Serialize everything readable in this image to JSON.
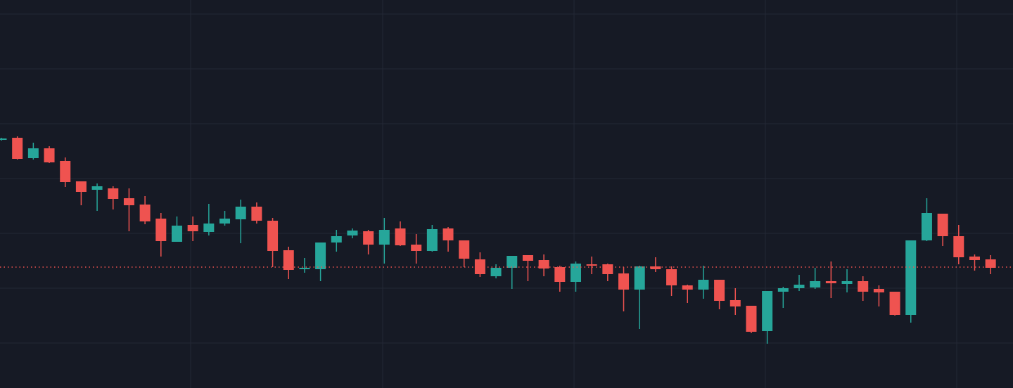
{
  "chart_data": {
    "type": "candlestick",
    "up_color": "#26a69a",
    "down_color": "#ef5350",
    "background": "#161a25",
    "grid_color": "#232835",
    "grid": true,
    "ylim": [
      0,
      552
    ],
    "yticks": [
      64,
      142,
      220,
      298,
      376,
      454,
      532
    ],
    "price_line": 172,
    "open": [
      353,
      356,
      327,
      341,
      323,
      294,
      282,
      284,
      270,
      261,
      241,
      208,
      232,
      222,
      234,
      240,
      258,
      238,
      196,
      169,
      169,
      207,
      217,
      223,
      204,
      227,
      204,
      195,
      227,
      210,
      183,
      159,
      171,
      189,
      182,
      172,
      151,
      176,
      176,
      163,
      140,
      173,
      169,
      146,
      140,
      154,
      125,
      117,
      81,
      137,
      142,
      143,
      152,
      148,
      152,
      141,
      137,
      104,
      210,
      248,
      216,
      187,
      183
    ],
    "high": [
      356,
      358,
      349,
      344,
      328,
      294,
      291,
      287,
      284,
      273,
      249,
      244,
      244,
      262,
      252,
      268,
      264,
      242,
      201,
      185,
      207,
      225,
      227,
      225,
      242,
      237,
      219,
      232,
      229,
      210,
      193,
      176,
      188,
      189,
      190,
      174,
      180,
      187,
      177,
      172,
      174,
      186,
      173,
      147,
      174,
      154,
      142,
      117,
      138,
      144,
      161,
      171,
      180,
      169,
      159,
      146,
      137,
      210,
      270,
      248,
      232,
      190,
      189
    ],
    "low": [
      352,
      325,
      325,
      320,
      286,
      260,
      252,
      254,
      223,
      233,
      187,
      208,
      209,
      217,
      231,
      206,
      234,
      172,
      155,
      164,
      152,
      194,
      213,
      190,
      177,
      202,
      177,
      194,
      194,
      172,
      158,
      156,
      141,
      152,
      159,
      137,
      137,
      162,
      152,
      109,
      84,
      165,
      131,
      121,
      127,
      112,
      104,
      78,
      63,
      114,
      138,
      141,
      128,
      136,
      124,
      116,
      103,
      93,
      209,
      202,
      176,
      167,
      162
    ],
    "close": [
      355,
      326,
      341,
      321,
      293,
      279,
      287,
      269,
      260,
      237,
      209,
      231,
      223,
      234,
      241,
      258,
      238,
      195,
      168,
      171,
      207,
      216,
      224,
      204,
      225,
      203,
      195,
      226,
      210,
      184,
      162,
      171,
      188,
      181,
      170,
      151,
      177,
      174,
      162,
      140,
      173,
      169,
      146,
      140,
      154,
      124,
      116,
      80,
      138,
      142,
      147,
      152,
      149,
      152,
      137,
      136,
      104,
      210,
      249,
      216,
      186,
      182,
      171
    ]
  }
}
